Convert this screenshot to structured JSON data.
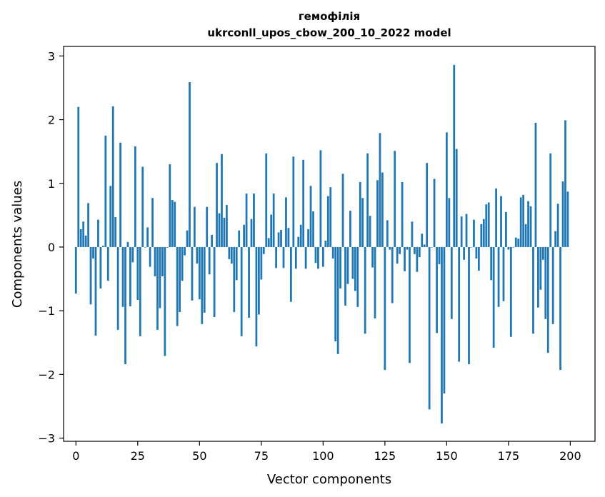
{
  "chart_data": {
    "type": "bar",
    "title": "гемофілія",
    "subtitle": "ukrconll_upos_cbow_200_10_2022 model",
    "xlabel": "Vector components",
    "ylabel": "Components values",
    "xlim": [
      -5,
      210
    ],
    "ylim": [
      -3.05,
      3.15
    ],
    "xticks": [
      0,
      25,
      50,
      75,
      100,
      125,
      150,
      175,
      200
    ],
    "xtick_labels": [
      "0",
      "25",
      "50",
      "75",
      "100",
      "125",
      "150",
      "175",
      "200"
    ],
    "yticks": [
      -3,
      -2,
      -1,
      0,
      1,
      2,
      3
    ],
    "ytick_labels": [
      "−3",
      "−2",
      "−1",
      "0",
      "1",
      "2",
      "3"
    ],
    "grid": false,
    "bar_color": "#1f77b4",
    "values": [
      -0.73,
      2.2,
      0.28,
      0.4,
      0.18,
      0.69,
      -0.9,
      -0.18,
      -1.39,
      0.43,
      -0.65,
      0.02,
      1.75,
      -0.53,
      0.96,
      2.21,
      0.47,
      -1.3,
      1.64,
      -0.94,
      -1.84,
      0.08,
      -0.93,
      -0.24,
      1.58,
      -0.83,
      -1.4,
      1.26,
      0.0,
      0.31,
      -0.31,
      0.77,
      -0.46,
      -1.3,
      -0.96,
      -0.46,
      -1.71,
      -0.01,
      1.3,
      0.74,
      0.71,
      -1.24,
      -1.02,
      -0.53,
      -0.13,
      0.26,
      2.59,
      -0.84,
      0.63,
      -0.26,
      -0.82,
      -1.21,
      -1.03,
      0.63,
      -0.43,
      0.19,
      -1.1,
      1.32,
      0.53,
      1.46,
      0.46,
      0.66,
      -0.19,
      -0.26,
      -1.02,
      -0.52,
      0.26,
      -1.4,
      0.35,
      0.84,
      -1.11,
      0.44,
      0.84,
      -1.56,
      -1.06,
      -0.51,
      -0.11,
      1.47,
      0.14,
      0.51,
      0.84,
      -0.33,
      0.23,
      0.27,
      -0.33,
      0.78,
      0.3,
      -0.86,
      1.42,
      -0.34,
      0.16,
      0.35,
      1.37,
      -0.34,
      0.28,
      0.96,
      0.56,
      -0.25,
      -0.34,
      1.52,
      -0.31,
      0.1,
      0.8,
      0.94,
      -0.18,
      -1.48,
      -1.68,
      -0.65,
      1.15,
      -0.92,
      -0.58,
      0.57,
      -0.5,
      -0.69,
      -0.94,
      1.02,
      0.77,
      -1.36,
      1.47,
      0.49,
      -0.32,
      -1.12,
      1.05,
      1.79,
      1.17,
      -1.93,
      0.42,
      -0.04,
      -0.88,
      1.51,
      -0.26,
      -0.11,
      1.02,
      -0.38,
      -0.04,
      -1.82,
      0.4,
      -0.11,
      -0.39,
      -0.16,
      0.21,
      0.04,
      1.32,
      -2.55,
      0.0,
      1.07,
      -1.35,
      -0.27,
      -2.77,
      -2.3,
      1.8,
      0.77,
      -1.13,
      2.86,
      1.54,
      -1.8,
      0.48,
      -0.2,
      0.52,
      -1.84,
      0.0,
      0.43,
      -0.18,
      -0.37,
      0.36,
      0.44,
      0.67,
      0.7,
      -0.52,
      -1.58,
      0.92,
      -0.94,
      0.8,
      -0.85,
      0.55,
      -0.04,
      -1.41,
      0.0,
      0.15,
      0.13,
      0.78,
      0.82,
      0.36,
      0.72,
      0.64,
      -1.36,
      1.95,
      -0.95,
      -0.67,
      -0.2,
      -1.13,
      -1.66,
      1.47,
      -1.21,
      0.25,
      0.68,
      -1.93,
      1.03,
      1.99,
      0.87
    ]
  }
}
